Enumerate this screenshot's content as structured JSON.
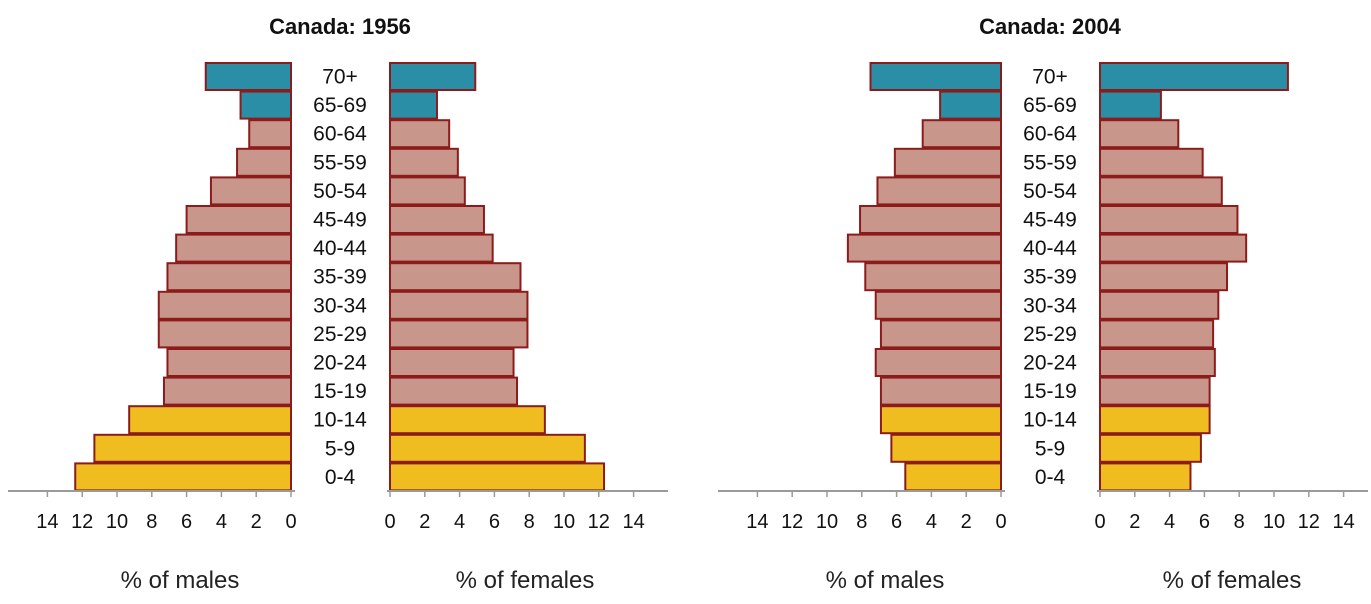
{
  "colors": {
    "elderly": "#2a8fa6",
    "working": "#c8968a",
    "young": "#efbd1f",
    "outline": "#8c1c1c",
    "axis": "#9a9a9a"
  },
  "chart_data": [
    {
      "type": "bar",
      "subtype": "population-pyramid",
      "title": "Canada: 1956",
      "categories": [
        "70+",
        "65-69",
        "60-64",
        "55-59",
        "50-54",
        "45-49",
        "40-44",
        "35-39",
        "30-34",
        "25-29",
        "20-24",
        "15-19",
        "10-14",
        "5-9",
        "0-4"
      ],
      "series": [
        {
          "name": "males",
          "side": "left",
          "values": [
            4.9,
            2.9,
            2.4,
            3.1,
            4.6,
            6.0,
            6.6,
            7.1,
            7.6,
            7.6,
            7.1,
            7.3,
            9.3,
            11.3,
            12.4
          ]
        },
        {
          "name": "females",
          "side": "right",
          "values": [
            4.9,
            2.7,
            3.4,
            3.9,
            4.3,
            5.4,
            5.9,
            7.5,
            7.9,
            7.9,
            7.1,
            7.3,
            8.9,
            11.2,
            12.3
          ]
        }
      ],
      "age_groups": {
        "elderly": [
          "70+",
          "65-69"
        ],
        "young": [
          "10-14",
          "5-9",
          "0-4"
        ]
      },
      "xlabel_left": "% of males",
      "xlabel_right": "% of females",
      "ticks_left": [
        "14",
        "12",
        "10",
        "8",
        "6",
        "4",
        "2",
        "0"
      ],
      "ticks_right": [
        "0",
        "2",
        "4",
        "6",
        "8",
        "10",
        "12",
        "14"
      ],
      "xlim": [
        0,
        14
      ]
    },
    {
      "type": "bar",
      "subtype": "population-pyramid",
      "title": "Canada: 2004",
      "categories": [
        "70+",
        "65-69",
        "60-64",
        "55-59",
        "50-54",
        "45-49",
        "40-44",
        "35-39",
        "30-34",
        "25-29",
        "20-24",
        "15-19",
        "10-14",
        "5-9",
        "0-4"
      ],
      "series": [
        {
          "name": "males",
          "side": "left",
          "values": [
            7.5,
            3.5,
            4.5,
            6.1,
            7.1,
            8.1,
            8.8,
            7.8,
            7.2,
            6.9,
            7.2,
            6.9,
            6.9,
            6.3,
            5.5
          ]
        },
        {
          "name": "females",
          "side": "right",
          "values": [
            10.8,
            3.5,
            4.5,
            5.9,
            7.0,
            7.9,
            8.4,
            7.3,
            6.8,
            6.5,
            6.6,
            6.3,
            6.3,
            5.8,
            5.2
          ]
        }
      ],
      "age_groups": {
        "elderly": [
          "70+",
          "65-69"
        ],
        "young": [
          "10-14",
          "5-9",
          "0-4"
        ]
      },
      "xlabel_left": "% of males",
      "xlabel_right": "% of females",
      "ticks_left": [
        "14",
        "12",
        "10",
        "8",
        "6",
        "4",
        "2",
        "0"
      ],
      "ticks_right": [
        "0",
        "2",
        "4",
        "6",
        "8",
        "10",
        "12",
        "14"
      ],
      "xlim": [
        0,
        14
      ]
    }
  ]
}
